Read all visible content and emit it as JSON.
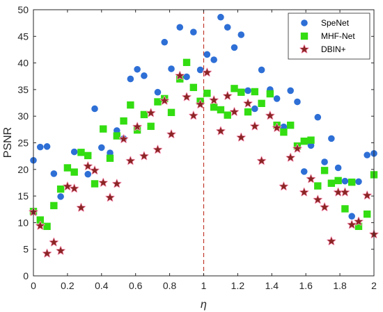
{
  "chart_data": {
    "type": "scatter",
    "xlabel": "η",
    "ylabel": "PSNR",
    "xlim": [
      0,
      2
    ],
    "ylim": [
      0,
      50
    ],
    "xticks": [
      0,
      0.2,
      0.4,
      0.6,
      0.8,
      1,
      1.2,
      1.4,
      1.6,
      1.8,
      2
    ],
    "xtick_labels": [
      "0",
      "0.2",
      "0.4",
      "0.6",
      "0.8",
      "1",
      "1.2",
      "1.4",
      "1.6",
      "1.8",
      "2"
    ],
    "yticks": [
      0,
      5,
      10,
      15,
      20,
      25,
      30,
      35,
      40,
      45,
      50
    ],
    "ytick_labels": [
      "0",
      "5",
      "10",
      "15",
      "20",
      "25",
      "30",
      "35",
      "40",
      "45",
      "50"
    ],
    "grid": false,
    "legend_position": "top-right",
    "reference_line": {
      "x": 1,
      "style": "dashed",
      "color": "#c0392b"
    },
    "series": [
      {
        "name": "SpeNet",
        "marker": "circle",
        "color": "#2e6fd6",
        "points": [
          [
            0.0,
            21.7
          ],
          [
            0.04,
            24.2
          ],
          [
            0.08,
            24.3
          ],
          [
            0.12,
            19.2
          ],
          [
            0.16,
            14.9
          ],
          [
            0.24,
            23.3
          ],
          [
            0.32,
            19.1
          ],
          [
            0.36,
            31.4
          ],
          [
            0.4,
            24.1
          ],
          [
            0.45,
            23.1
          ],
          [
            0.49,
            27.3
          ],
          [
            0.53,
            25.8
          ],
          [
            0.57,
            37.0
          ],
          [
            0.61,
            38.8
          ],
          [
            0.65,
            37.6
          ],
          [
            0.73,
            34.5
          ],
          [
            0.77,
            43.9
          ],
          [
            0.81,
            38.9
          ],
          [
            0.86,
            46.7
          ],
          [
            0.9,
            37.4
          ],
          [
            0.94,
            45.8
          ],
          [
            0.98,
            38.7
          ],
          [
            1.02,
            41.6
          ],
          [
            1.06,
            40.6
          ],
          [
            1.1,
            48.6
          ],
          [
            1.14,
            46.7
          ],
          [
            1.18,
            42.9
          ],
          [
            1.22,
            45.3
          ],
          [
            1.26,
            34.8
          ],
          [
            1.3,
            31.4
          ],
          [
            1.34,
            38.7
          ],
          [
            1.39,
            35.0
          ],
          [
            1.43,
            33.3
          ],
          [
            1.47,
            28.0
          ],
          [
            1.51,
            34.8
          ],
          [
            1.55,
            32.7
          ],
          [
            1.59,
            19.6
          ],
          [
            1.63,
            24.5
          ],
          [
            1.67,
            29.8
          ],
          [
            1.71,
            21.4
          ],
          [
            1.75,
            25.8
          ],
          [
            1.79,
            20.3
          ],
          [
            1.83,
            17.8
          ],
          [
            1.87,
            11.2
          ],
          [
            1.91,
            17.7
          ],
          [
            1.96,
            22.7
          ],
          [
            2.0,
            23.0
          ]
        ]
      },
      {
        "name": "MHF-Net",
        "marker": "square",
        "color": "#33dd11",
        "points": [
          [
            0.0,
            12.1
          ],
          [
            0.04,
            10.5
          ],
          [
            0.08,
            9.3
          ],
          [
            0.12,
            13.2
          ],
          [
            0.16,
            16.3
          ],
          [
            0.2,
            20.3
          ],
          [
            0.24,
            19.5
          ],
          [
            0.28,
            23.2
          ],
          [
            0.32,
            22.6
          ],
          [
            0.36,
            17.3
          ],
          [
            0.41,
            27.6
          ],
          [
            0.45,
            22.1
          ],
          [
            0.49,
            26.3
          ],
          [
            0.53,
            29.1
          ],
          [
            0.57,
            32.1
          ],
          [
            0.61,
            27.4
          ],
          [
            0.65,
            30.3
          ],
          [
            0.69,
            28.1
          ],
          [
            0.73,
            32.7
          ],
          [
            0.77,
            33.3
          ],
          [
            0.81,
            30.7
          ],
          [
            0.86,
            37.0
          ],
          [
            0.9,
            40.1
          ],
          [
            0.94,
            35.4
          ],
          [
            0.98,
            32.8
          ],
          [
            1.02,
            34.3
          ],
          [
            1.06,
            31.7
          ],
          [
            1.1,
            31.2
          ],
          [
            1.14,
            30.2
          ],
          [
            1.18,
            35.2
          ],
          [
            1.22,
            34.5
          ],
          [
            1.26,
            30.8
          ],
          [
            1.3,
            34.6
          ],
          [
            1.34,
            32.4
          ],
          [
            1.39,
            34.2
          ],
          [
            1.43,
            28.3
          ],
          [
            1.47,
            27.0
          ],
          [
            1.51,
            28.3
          ],
          [
            1.55,
            24.4
          ],
          [
            1.59,
            25.3
          ],
          [
            1.63,
            25.5
          ],
          [
            1.67,
            16.9
          ],
          [
            1.71,
            19.8
          ],
          [
            1.75,
            17.4
          ],
          [
            1.79,
            17.9
          ],
          [
            1.83,
            12.6
          ],
          [
            1.87,
            17.6
          ],
          [
            1.91,
            9.3
          ],
          [
            1.96,
            11.6
          ],
          [
            2.0,
            19.0
          ]
        ]
      },
      {
        "name": "DBIN+",
        "marker": "star",
        "color": "#8b2525",
        "points": [
          [
            0.0,
            12.0
          ],
          [
            0.04,
            9.4
          ],
          [
            0.08,
            4.2
          ],
          [
            0.12,
            6.3
          ],
          [
            0.16,
            4.7
          ],
          [
            0.2,
            16.8
          ],
          [
            0.24,
            16.4
          ],
          [
            0.28,
            12.8
          ],
          [
            0.32,
            20.6
          ],
          [
            0.36,
            19.8
          ],
          [
            0.41,
            17.5
          ],
          [
            0.45,
            14.7
          ],
          [
            0.49,
            17.3
          ],
          [
            0.53,
            25.7
          ],
          [
            0.57,
            21.6
          ],
          [
            0.61,
            28.0
          ],
          [
            0.65,
            22.5
          ],
          [
            0.69,
            30.6
          ],
          [
            0.73,
            23.7
          ],
          [
            0.77,
            32.9
          ],
          [
            0.81,
            26.6
          ],
          [
            0.86,
            37.6
          ],
          [
            0.9,
            33.6
          ],
          [
            0.94,
            30.1
          ],
          [
            0.98,
            32.2
          ],
          [
            1.02,
            38.2
          ],
          [
            1.06,
            33.0
          ],
          [
            1.1,
            27.2
          ],
          [
            1.14,
            33.8
          ],
          [
            1.18,
            30.8
          ],
          [
            1.22,
            26.0
          ],
          [
            1.26,
            32.4
          ],
          [
            1.3,
            28.1
          ],
          [
            1.34,
            21.6
          ],
          [
            1.39,
            30.1
          ],
          [
            1.43,
            27.8
          ],
          [
            1.47,
            16.8
          ],
          [
            1.51,
            22.2
          ],
          [
            1.55,
            23.9
          ],
          [
            1.59,
            15.7
          ],
          [
            1.63,
            18.2
          ],
          [
            1.67,
            14.3
          ],
          [
            1.71,
            12.9
          ],
          [
            1.75,
            6.5
          ],
          [
            1.79,
            15.7
          ],
          [
            1.83,
            15.7
          ],
          [
            1.87,
            9.6
          ],
          [
            1.91,
            10.2
          ],
          [
            1.96,
            15.1
          ],
          [
            2.0,
            7.8
          ]
        ]
      }
    ]
  }
}
